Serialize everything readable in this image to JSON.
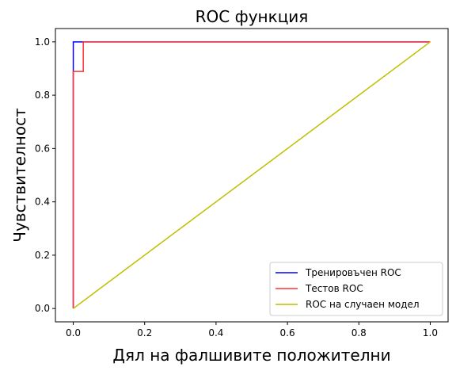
{
  "chart_data": {
    "type": "line",
    "title": "ROC функция",
    "xlabel": "Дял на фалшивите положителни",
    "ylabel": "Чувствителност",
    "xlim": [
      -0.05,
      1.05
    ],
    "ylim": [
      -0.05,
      1.05
    ],
    "xticks": [
      "0.0",
      "0.2",
      "0.4",
      "0.6",
      "0.8",
      "1.0"
    ],
    "yticks": [
      "0.0",
      "0.2",
      "0.4",
      "0.6",
      "0.8",
      "1.0"
    ],
    "grid": false,
    "legend_position": "bottom-right",
    "series": [
      {
        "name": "Тренировъчен ROC",
        "color": "#0000ff",
        "x": [
          0,
          0,
          0,
          1
        ],
        "y": [
          0,
          0.889,
          1,
          1
        ]
      },
      {
        "name": "Тестов ROC",
        "color": "#ff3333",
        "x": [
          0,
          0,
          0.028,
          0.028,
          1
        ],
        "y": [
          0,
          0.889,
          0.889,
          1,
          1
        ]
      },
      {
        "name": "ROC на случаен модел",
        "color": "#bfbf00",
        "x": [
          0,
          1
        ],
        "y": [
          0,
          1
        ]
      }
    ]
  }
}
